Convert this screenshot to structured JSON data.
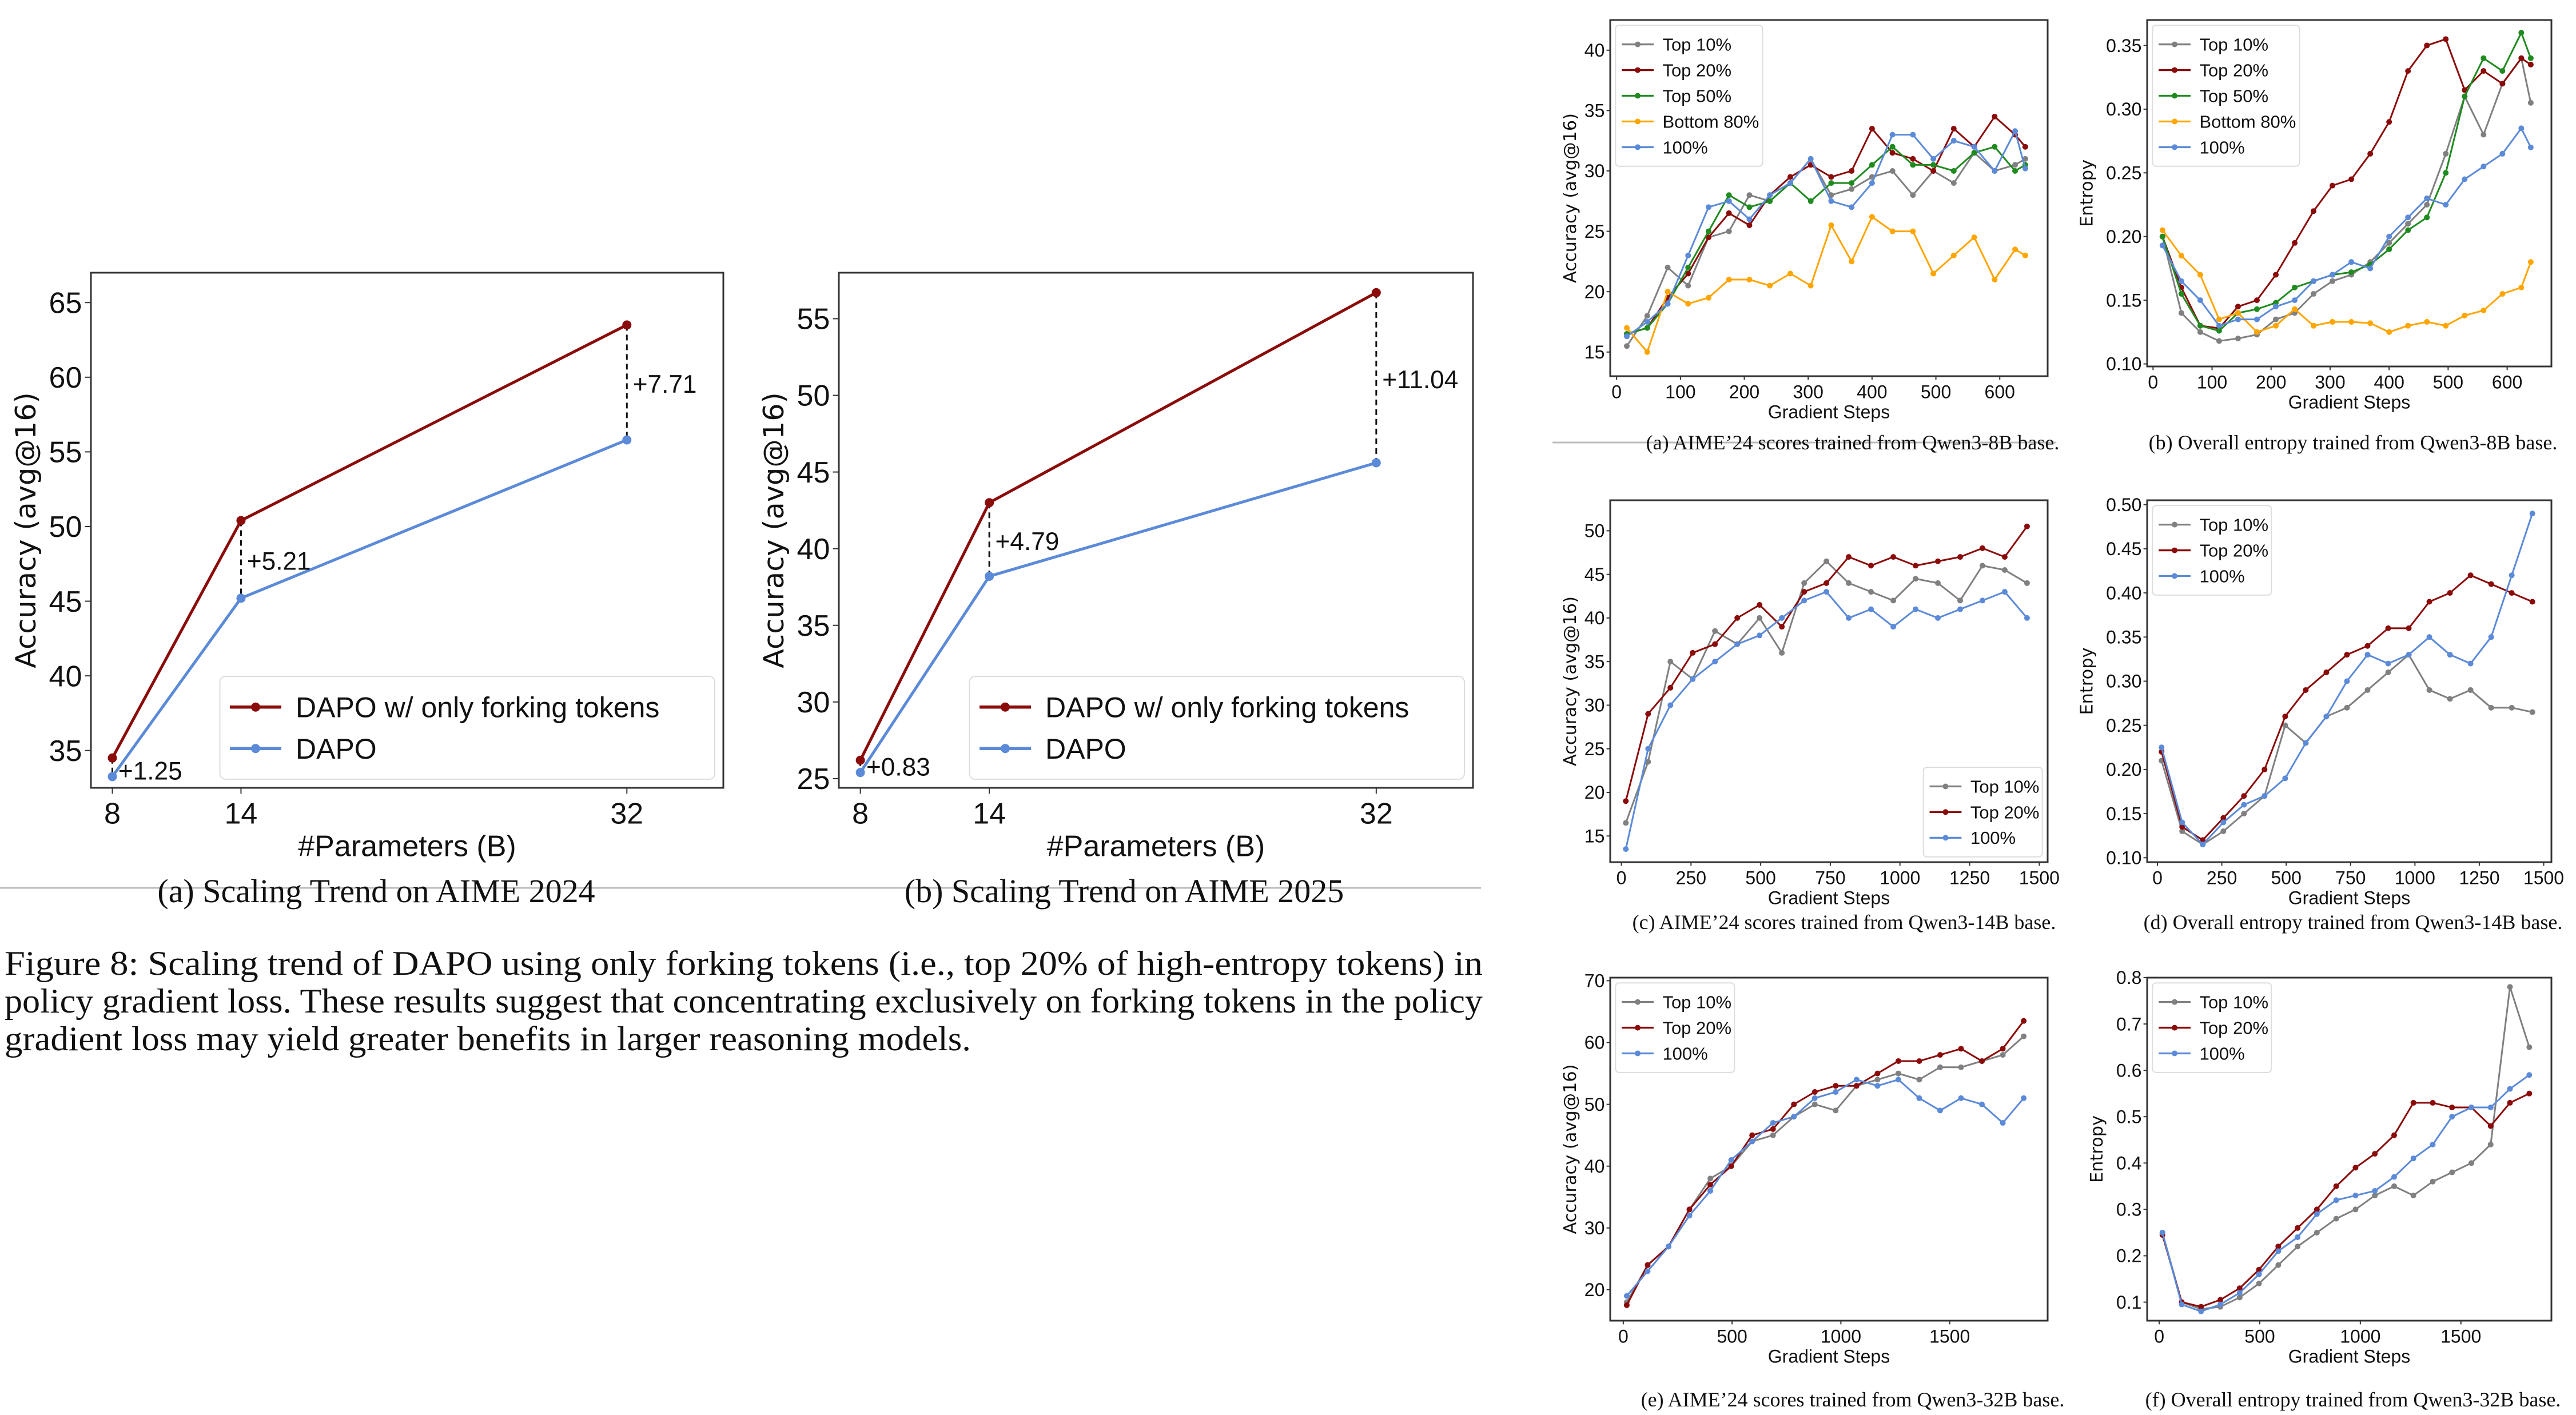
{
  "figure_caption": {
    "lines": [
      "Figure 8: Scaling trend of DAPO using only forking tokens (i.e., top 20% of high-entropy tokens) in",
      "policy gradient loss. These results suggest that concentrating exclusively on forking tokens in the policy",
      "gradient loss may yield greater benefits in larger reasoning models."
    ]
  },
  "colors": {
    "red": "#8b0a0a",
    "blue": "#5b8ad8",
    "gray": "#808080",
    "green": "#1f8a1f",
    "orange": "#ffa500"
  },
  "chart_data": [
    {
      "type": "line",
      "title": "",
      "caption": "(a) Scaling Trend on AIME 2024",
      "xlabel": "#Parameters (B)",
      "ylabel": "Accuracy (avg@16)",
      "x": [
        8,
        14,
        32
      ],
      "xticks": [
        "8",
        "14",
        "32"
      ],
      "yticks": [
        "35",
        "40",
        "45",
        "50",
        "55",
        "60",
        "65"
      ],
      "xlim": [
        7,
        36.5
      ],
      "ylim": [
        32.5,
        67
      ],
      "grid": false,
      "legend": "lower-right",
      "series": [
        {
          "name": "DAPO w/ only forking tokens",
          "color": "#8b0a0a",
          "values": [
            34.5,
            50.4,
            63.5
          ]
        },
        {
          "name": "DAPO",
          "color": "#5b8ad8",
          "values": [
            33.25,
            45.2,
            55.8
          ]
        }
      ],
      "annotations": [
        {
          "x": 8,
          "text": "+1.25"
        },
        {
          "x": 14,
          "text": "+5.21"
        },
        {
          "x": 32,
          "text": "+7.71"
        }
      ]
    },
    {
      "type": "line",
      "title": "",
      "caption": "(b) Scaling Trend on AIME 2025",
      "xlabel": "#Parameters (B)",
      "ylabel": "Accuracy (avg@16)",
      "x": [
        8,
        14,
        32
      ],
      "xticks": [
        "8",
        "14",
        "32"
      ],
      "yticks": [
        "25",
        "30",
        "35",
        "40",
        "45",
        "50",
        "55"
      ],
      "xlim": [
        7,
        36.5
      ],
      "ylim": [
        24.4,
        58
      ],
      "grid": false,
      "legend": "lower-right",
      "series": [
        {
          "name": "DAPO w/ only forking tokens",
          "color": "#8b0a0a",
          "values": [
            26.2,
            43.0,
            56.7
          ]
        },
        {
          "name": "DAPO",
          "color": "#5b8ad8",
          "values": [
            25.4,
            38.2,
            45.6
          ]
        }
      ],
      "annotations": [
        {
          "x": 8,
          "text": "+0.83"
        },
        {
          "x": 14,
          "text": "+4.79"
        },
        {
          "x": 32,
          "text": "+11.04"
        }
      ]
    },
    {
      "type": "line",
      "title": "",
      "caption": "(a) AIME’24 scores trained from Qwen3-8B base.",
      "xlabel": "Gradient Steps",
      "ylabel": "Accuracy (avg@16)",
      "x": [
        16,
        48,
        80,
        112,
        144,
        176,
        208,
        240,
        272,
        304,
        336,
        368,
        400,
        432,
        464,
        496,
        528,
        560,
        592,
        624,
        640
      ],
      "xticks": [
        "0",
        "100",
        "200",
        "300",
        "400",
        "500",
        "600"
      ],
      "yticks": [
        "15",
        "20",
        "25",
        "30",
        "35",
        "40"
      ],
      "xlim": [
        -10,
        675
      ],
      "ylim": [
        13,
        42.5
      ],
      "grid": false,
      "legend": "upper-left",
      "series": [
        {
          "name": "Top 10%",
          "color": "#808080",
          "values": [
            15.5,
            18,
            22,
            20.5,
            24.5,
            25,
            28,
            27.5,
            29,
            31,
            28,
            28.5,
            29.5,
            30,
            28,
            30,
            29,
            31.5,
            30,
            30.5,
            31
          ]
        },
        {
          "name": "Top 20%",
          "color": "#8b0a0a",
          "values": [
            16.5,
            17,
            19.5,
            21.5,
            24.5,
            26.5,
            25.5,
            28,
            29.5,
            30.5,
            29.5,
            30,
            33.5,
            31.5,
            31,
            30,
            33.5,
            32,
            34.5,
            33,
            32
          ]
        },
        {
          "name": "Top 50%",
          "color": "#1f8a1f",
          "values": [
            16.5,
            17,
            19,
            22,
            25,
            28,
            27,
            27.5,
            29,
            27.5,
            29,
            29,
            30.5,
            32,
            30.5,
            30.5,
            30,
            31.5,
            32,
            30,
            30.5
          ]
        },
        {
          "name": "Bottom 80%",
          "color": "#ffa500",
          "values": [
            17,
            15,
            20,
            19,
            19.5,
            21,
            21,
            20.5,
            21.5,
            20.5,
            25.5,
            22.5,
            26.2,
            25,
            25,
            21.5,
            23,
            24.5,
            21,
            23.5,
            23
          ]
        },
        {
          "name": "100%",
          "color": "#5b8ad8",
          "values": [
            16.3,
            17.5,
            19,
            23,
            27,
            27.5,
            26,
            28,
            29,
            31,
            27.5,
            27,
            29,
            33,
            33,
            31,
            32.5,
            32,
            30,
            33.3,
            30.2
          ]
        }
      ]
    },
    {
      "type": "line",
      "title": "",
      "caption": "(b) Overall entropy trained from Qwen3-8B base.",
      "xlabel": "Gradient Steps",
      "ylabel": "Entropy",
      "x": [
        16,
        48,
        80,
        112,
        144,
        176,
        208,
        240,
        272,
        304,
        336,
        368,
        400,
        432,
        464,
        496,
        528,
        560,
        592,
        624,
        640
      ],
      "xticks": [
        "0",
        "100",
        "200",
        "300",
        "400",
        "500",
        "600"
      ],
      "yticks": [
        "0.10",
        "0.15",
        "0.20",
        "0.25",
        "0.30",
        "0.35"
      ],
      "xlim": [
        -10,
        675
      ],
      "ylim": [
        0.098,
        0.37
      ],
      "grid": false,
      "legend": "upper-left",
      "series": [
        {
          "name": "Top 10%",
          "color": "#808080",
          "values": [
            0.2,
            0.14,
            0.125,
            0.118,
            0.12,
            0.123,
            0.135,
            0.14,
            0.155,
            0.165,
            0.17,
            0.18,
            0.195,
            0.21,
            0.225,
            0.265,
            0.31,
            0.28,
            0.32,
            0.34,
            0.305
          ]
        },
        {
          "name": "Top 20%",
          "color": "#8b0a0a",
          "values": [
            0.2,
            0.16,
            0.13,
            0.128,
            0.145,
            0.15,
            0.17,
            0.195,
            0.22,
            0.24,
            0.245,
            0.265,
            0.29,
            0.33,
            0.35,
            0.355,
            0.315,
            0.33,
            0.32,
            0.34,
            0.335
          ]
        },
        {
          "name": "Top 50%",
          "color": "#1f8a1f",
          "values": [
            0.2,
            0.155,
            0.13,
            0.126,
            0.14,
            0.143,
            0.148,
            0.16,
            0.165,
            0.17,
            0.172,
            0.178,
            0.19,
            0.205,
            0.215,
            0.25,
            0.31,
            0.34,
            0.33,
            0.36,
            0.34
          ]
        },
        {
          "name": "Bottom 80%",
          "color": "#ffa500",
          "values": [
            0.205,
            0.185,
            0.17,
            0.135,
            0.14,
            0.125,
            0.13,
            0.143,
            0.13,
            0.133,
            0.133,
            0.132,
            0.125,
            0.13,
            0.133,
            0.13,
            0.138,
            0.142,
            0.155,
            0.16,
            0.18
          ]
        },
        {
          "name": "100%",
          "color": "#5b8ad8",
          "values": [
            0.193,
            0.165,
            0.15,
            0.13,
            0.135,
            0.135,
            0.145,
            0.15,
            0.165,
            0.17,
            0.18,
            0.175,
            0.2,
            0.215,
            0.23,
            0.225,
            0.245,
            0.255,
            0.265,
            0.285,
            0.27
          ]
        }
      ]
    },
    {
      "type": "line",
      "title": "",
      "caption": "(c) AIME’24 scores trained from Qwen3-14B base.",
      "xlabel": "Gradient Steps",
      "ylabel": "Accuracy (avg@16)",
      "x": [
        16,
        96,
        176,
        256,
        336,
        416,
        496,
        576,
        656,
        736,
        816,
        896,
        976,
        1056,
        1136,
        1216,
        1296,
        1376,
        1456
      ],
      "xticks": [
        "0",
        "250",
        "500",
        "750",
        "1000",
        "1250",
        "1500"
      ],
      "yticks": [
        "15",
        "20",
        "25",
        "30",
        "35",
        "40",
        "45",
        "50"
      ],
      "xlim": [
        -40,
        1530
      ],
      "ylim": [
        12,
        53.5
      ],
      "grid": false,
      "legend": "lower-right",
      "series": [
        {
          "name": "Top 10%",
          "color": "#808080",
          "values": [
            16.5,
            23.5,
            35,
            33,
            38.5,
            37,
            40,
            36,
            44,
            46.5,
            44,
            43,
            42,
            44.5,
            44,
            42,
            46,
            45.5,
            44
          ]
        },
        {
          "name": "Top 20%",
          "color": "#8b0a0a",
          "values": [
            19,
            29,
            32,
            36,
            37,
            40,
            41.5,
            39,
            43,
            44,
            47,
            46,
            47,
            46,
            46.5,
            47,
            48,
            47,
            50.5
          ]
        },
        {
          "name": "100%",
          "color": "#5b8ad8",
          "values": [
            13.5,
            25,
            30,
            33,
            35,
            37,
            38,
            40,
            42,
            43,
            40,
            41,
            39,
            41,
            40,
            41,
            42,
            43,
            40
          ]
        }
      ]
    },
    {
      "type": "line",
      "title": "",
      "caption": "(d) Overall entropy trained from Qwen3-14B base.",
      "xlabel": "Gradient Steps",
      "ylabel": "Entropy",
      "x": [
        16,
        96,
        176,
        256,
        336,
        416,
        496,
        576,
        656,
        736,
        816,
        896,
        976,
        1056,
        1136,
        1216,
        1296,
        1376,
        1456
      ],
      "xticks": [
        "0",
        "250",
        "500",
        "750",
        "1000",
        "1250",
        "1500"
      ],
      "yticks": [
        "0.10",
        "0.15",
        "0.20",
        "0.25",
        "0.30",
        "0.35",
        "0.40",
        "0.45",
        "0.50"
      ],
      "xlim": [
        -40,
        1530
      ],
      "ylim": [
        0.095,
        0.505
      ],
      "grid": false,
      "legend": "upper-left",
      "series": [
        {
          "name": "Top 10%",
          "color": "#808080",
          "values": [
            0.21,
            0.13,
            0.115,
            0.13,
            0.15,
            0.17,
            0.25,
            0.23,
            0.26,
            0.27,
            0.29,
            0.31,
            0.33,
            0.29,
            0.28,
            0.29,
            0.27,
            0.27,
            0.265
          ]
        },
        {
          "name": "Top 20%",
          "color": "#8b0a0a",
          "values": [
            0.22,
            0.135,
            0.12,
            0.145,
            0.17,
            0.2,
            0.26,
            0.29,
            0.31,
            0.33,
            0.34,
            0.36,
            0.36,
            0.39,
            0.4,
            0.42,
            0.41,
            0.4,
            0.39
          ]
        },
        {
          "name": "100%",
          "color": "#5b8ad8",
          "values": [
            0.225,
            0.14,
            0.115,
            0.14,
            0.16,
            0.17,
            0.19,
            0.23,
            0.26,
            0.3,
            0.33,
            0.32,
            0.33,
            0.35,
            0.33,
            0.32,
            0.35,
            0.42,
            0.49
          ]
        }
      ]
    },
    {
      "type": "line",
      "title": "",
      "caption": "(e) AIME’24 scores trained from Qwen3-32B base.",
      "xlabel": "Gradient Steps",
      "ylabel": "Accuracy (avg@16)",
      "x": [
        16,
        112,
        208,
        304,
        400,
        496,
        592,
        688,
        784,
        880,
        976,
        1072,
        1168,
        1264,
        1360,
        1456,
        1552,
        1648,
        1744,
        1840
      ],
      "xticks": [
        "0",
        "500",
        "1000",
        "1500"
      ],
      "yticks": [
        "20",
        "30",
        "40",
        "50",
        "60",
        "70"
      ],
      "xlim": [
        -60,
        1950
      ],
      "ylim": [
        15,
        70.5
      ],
      "grid": false,
      "legend": "upper-left",
      "series": [
        {
          "name": "Top 10%",
          "color": "#808080",
          "values": [
            18,
            24,
            27,
            33,
            38,
            40,
            44,
            45,
            48,
            50,
            49,
            53,
            54,
            55,
            54,
            56,
            56,
            57,
            58,
            61
          ]
        },
        {
          "name": "Top 20%",
          "color": "#8b0a0a",
          "values": [
            17.5,
            24,
            27,
            33,
            37,
            40,
            45,
            46,
            50,
            52,
            53,
            53,
            55,
            57,
            57,
            58,
            59,
            57,
            59,
            63.5
          ]
        },
        {
          "name": "100%",
          "color": "#5b8ad8",
          "values": [
            19,
            23,
            27,
            32,
            36,
            41,
            44,
            47,
            48,
            51,
            52,
            54,
            53,
            54,
            51,
            49,
            51,
            50,
            47,
            51
          ]
        }
      ]
    },
    {
      "type": "line",
      "title": "",
      "caption": "(f) Overall entropy trained from Qwen3-32B base.",
      "xlabel": "Gradient Steps",
      "ylabel": "Entropy",
      "x": [
        16,
        112,
        208,
        304,
        400,
        496,
        592,
        688,
        784,
        880,
        976,
        1072,
        1168,
        1264,
        1360,
        1456,
        1552,
        1648,
        1744,
        1840
      ],
      "xticks": [
        "0",
        "500",
        "1000",
        "1500"
      ],
      "yticks": [
        "0.1",
        "0.2",
        "0.3",
        "0.4",
        "0.5",
        "0.6",
        "0.7",
        "0.8"
      ],
      "xlim": [
        -60,
        1950
      ],
      "ylim": [
        0.06,
        0.8
      ],
      "grid": false,
      "legend": "upper-left",
      "series": [
        {
          "name": "Top 10%",
          "color": "#808080",
          "values": [
            0.25,
            0.1,
            0.085,
            0.09,
            0.11,
            0.14,
            0.18,
            0.22,
            0.25,
            0.28,
            0.3,
            0.33,
            0.35,
            0.33,
            0.36,
            0.38,
            0.4,
            0.44,
            0.78,
            0.65
          ]
        },
        {
          "name": "Top 20%",
          "color": "#8b0a0a",
          "values": [
            0.245,
            0.1,
            0.09,
            0.105,
            0.13,
            0.17,
            0.22,
            0.26,
            0.3,
            0.35,
            0.39,
            0.42,
            0.46,
            0.53,
            0.53,
            0.52,
            0.52,
            0.48,
            0.53,
            0.55
          ]
        },
        {
          "name": "100%",
          "color": "#5b8ad8",
          "values": [
            0.25,
            0.095,
            0.08,
            0.095,
            0.12,
            0.16,
            0.21,
            0.24,
            0.29,
            0.32,
            0.33,
            0.34,
            0.37,
            0.41,
            0.44,
            0.5,
            0.52,
            0.52,
            0.56,
            0.59
          ]
        }
      ]
    }
  ]
}
